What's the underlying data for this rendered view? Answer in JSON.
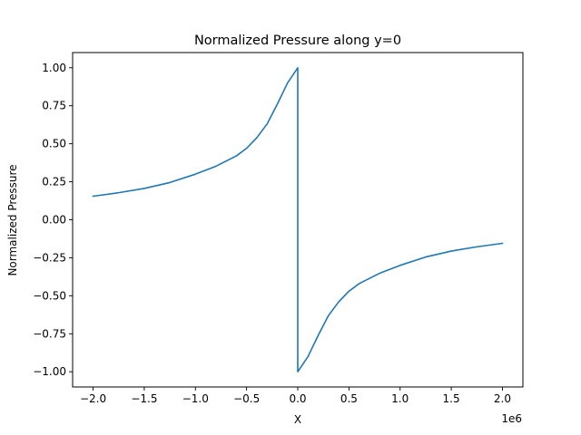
{
  "chart_data": {
    "type": "line",
    "title": "Normalized Pressure along y=0",
    "xlabel": "X",
    "ylabel": "Normalized Pressure",
    "x_offset_label": "1e6",
    "x_scale": 1000000,
    "xlim": [
      -2200000,
      2200000
    ],
    "ylim": [
      -1.1,
      1.1
    ],
    "xticks": [
      -2000000,
      -1500000,
      -1000000,
      -500000,
      0,
      500000,
      1000000,
      1500000,
      2000000
    ],
    "xtick_labels": [
      "−2.0",
      "−1.5",
      "−1.0",
      "−0.5",
      "0.0",
      "0.5",
      "1.0",
      "1.5",
      "2.0"
    ],
    "yticks": [
      1.0,
      0.75,
      0.5,
      0.25,
      0.0,
      -0.25,
      -0.5,
      -0.75,
      -1.0
    ],
    "ytick_labels": [
      "1.00",
      "0.75",
      "0.50",
      "0.25",
      "0.00",
      "−0.25",
      "−0.50",
      "−0.75",
      "−1.00"
    ],
    "grid": false,
    "series": [
      {
        "color": "#1f77b4",
        "x": [
          -2000000,
          -1750000,
          -1500000,
          -1250000,
          -1000000,
          -800000,
          -600000,
          -500000,
          -400000,
          -300000,
          -200000,
          -150000,
          -100000,
          -50000,
          0,
          0,
          50000,
          100000,
          150000,
          200000,
          300000,
          400000,
          500000,
          600000,
          800000,
          1000000,
          1250000,
          1500000,
          1750000,
          2000000
        ],
        "y": [
          0.155,
          0.178,
          0.206,
          0.245,
          0.3,
          0.352,
          0.42,
          0.47,
          0.54,
          0.63,
          0.76,
          0.83,
          0.9,
          0.95,
          1.0,
          -1.0,
          -0.95,
          -0.9,
          -0.83,
          -0.76,
          -0.63,
          -0.54,
          -0.47,
          -0.42,
          -0.352,
          -0.3,
          -0.245,
          -0.206,
          -0.178,
          -0.155
        ]
      }
    ]
  }
}
